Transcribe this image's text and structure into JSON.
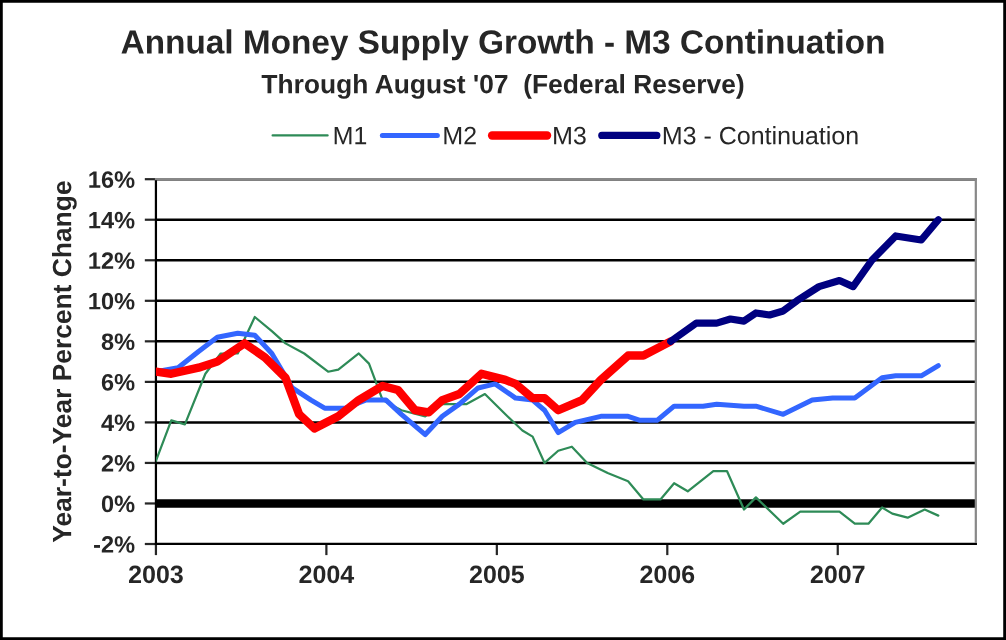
{
  "chart_data": {
    "type": "line",
    "title": "Annual Money Supply Growth - M3 Continuation",
    "subtitle": "Through August '07  (Federal Reserve)",
    "ylabel": "Year-to-Year Percent Change",
    "xlim": [
      2003,
      2007.81
    ],
    "xticks": [
      2003,
      2004,
      2005,
      2006,
      2007
    ],
    "ylim": [
      -2,
      16
    ],
    "yticks": [
      {
        "value": -2,
        "label": "-2%"
      },
      {
        "value": 0,
        "label": "0%"
      },
      {
        "value": 2,
        "label": "2%"
      },
      {
        "value": 4,
        "label": "4%"
      },
      {
        "value": 6,
        "label": "6%"
      },
      {
        "value": 8,
        "label": "8%"
      },
      {
        "value": 10,
        "label": "10%"
      },
      {
        "value": 12,
        "label": "12%"
      },
      {
        "value": 14,
        "label": "14%"
      },
      {
        "value": 16,
        "label": "16%"
      }
    ],
    "grid": "y",
    "legend": "top",
    "ref_lines": [
      {
        "axis": "y",
        "value": 0,
        "color": "#000000"
      }
    ],
    "series": [
      {
        "name": "M1",
        "color": "#2e8b57",
        "x": [
          2003.0,
          2003.09,
          2003.17,
          2003.29,
          2003.38,
          2003.48,
          2003.58,
          2003.68,
          2003.76,
          2003.87,
          2004.01,
          2004.07,
          2004.19,
          2004.25,
          2004.33,
          2004.44,
          2004.58,
          2004.68,
          2004.82,
          2004.93,
          2005.05,
          2005.15,
          2005.21,
          2005.28,
          2005.36,
          2005.44,
          2005.53,
          2005.65,
          2005.77,
          2005.86,
          2005.96,
          2006.04,
          2006.12,
          2006.27,
          2006.35,
          2006.45,
          2006.52,
          2006.68,
          2006.78,
          2006.89,
          2007.01,
          2007.1,
          2007.18,
          2007.26,
          2007.32,
          2007.41,
          2007.51,
          2007.59
        ],
        "values": [
          2.1,
          4.1,
          3.9,
          6.4,
          7.4,
          7.4,
          9.2,
          8.5,
          7.9,
          7.4,
          6.5,
          6.6,
          7.4,
          6.9,
          5.1,
          4.6,
          4.3,
          4.9,
          4.9,
          5.4,
          4.4,
          3.6,
          3.3,
          2.0,
          2.6,
          2.8,
          2.0,
          1.5,
          1.1,
          0.2,
          0.2,
          1.0,
          0.6,
          1.6,
          1.6,
          -0.3,
          0.3,
          -1.0,
          -0.4,
          -0.4,
          -0.4,
          -1.0,
          -1.0,
          -0.2,
          -0.5,
          -0.7,
          -0.3,
          -0.6
        ]
      },
      {
        "name": "M2",
        "color": "#3366ff",
        "x": [
          2003.0,
          2003.13,
          2003.25,
          2003.36,
          2003.48,
          2003.58,
          2003.68,
          2003.8,
          2003.91,
          2003.99,
          2004.11,
          2004.23,
          2004.35,
          2004.44,
          2004.58,
          2004.68,
          2004.78,
          2004.89,
          2004.99,
          2005.11,
          2005.21,
          2005.28,
          2005.36,
          2005.46,
          2005.61,
          2005.77,
          2005.84,
          2005.94,
          2006.04,
          2006.21,
          2006.29,
          2006.45,
          2006.52,
          2006.68,
          2006.85,
          2006.97,
          2007.1,
          2007.26,
          2007.34,
          2007.49,
          2007.59
        ],
        "values": [
          6.5,
          6.7,
          7.5,
          8.2,
          8.4,
          8.3,
          7.4,
          5.7,
          5.1,
          4.7,
          4.7,
          5.1,
          5.1,
          4.4,
          3.4,
          4.3,
          4.9,
          5.7,
          5.9,
          5.2,
          5.1,
          4.6,
          3.5,
          4.0,
          4.3,
          4.3,
          4.1,
          4.1,
          4.8,
          4.8,
          4.9,
          4.8,
          4.8,
          4.4,
          5.1,
          5.2,
          5.2,
          6.2,
          6.3,
          6.3,
          6.8
        ]
      },
      {
        "name": "M3",
        "color": "#ff0000",
        "x": [
          2003.0,
          2003.09,
          2003.25,
          2003.36,
          2003.52,
          2003.64,
          2003.76,
          2003.84,
          2003.93,
          2004.07,
          2004.19,
          2004.33,
          2004.42,
          2004.52,
          2004.6,
          2004.68,
          2004.78,
          2004.91,
          2005.05,
          2005.11,
          2005.21,
          2005.28,
          2005.36,
          2005.5,
          2005.61,
          2005.77,
          2005.86,
          2006.02
        ],
        "values": [
          6.5,
          6.4,
          6.7,
          7.0,
          7.9,
          7.2,
          6.2,
          4.4,
          3.7,
          4.3,
          5.1,
          5.8,
          5.6,
          4.6,
          4.5,
          5.1,
          5.4,
          6.4,
          6.1,
          5.9,
          5.2,
          5.2,
          4.6,
          5.1,
          6.1,
          7.3,
          7.3,
          8.0
        ]
      },
      {
        "name": "M3 - Continuation",
        "color": "#000080",
        "x": [
          2006.02,
          2006.17,
          2006.29,
          2006.37,
          2006.45,
          2006.52,
          2006.6,
          2006.68,
          2006.76,
          2006.89,
          2007.01,
          2007.09,
          2007.2,
          2007.34,
          2007.49,
          2007.59
        ],
        "values": [
          8.0,
          8.9,
          8.9,
          9.1,
          9.0,
          9.4,
          9.3,
          9.5,
          10.0,
          10.7,
          11.0,
          10.7,
          12.0,
          13.2,
          13.0,
          14.0
        ]
      }
    ]
  }
}
